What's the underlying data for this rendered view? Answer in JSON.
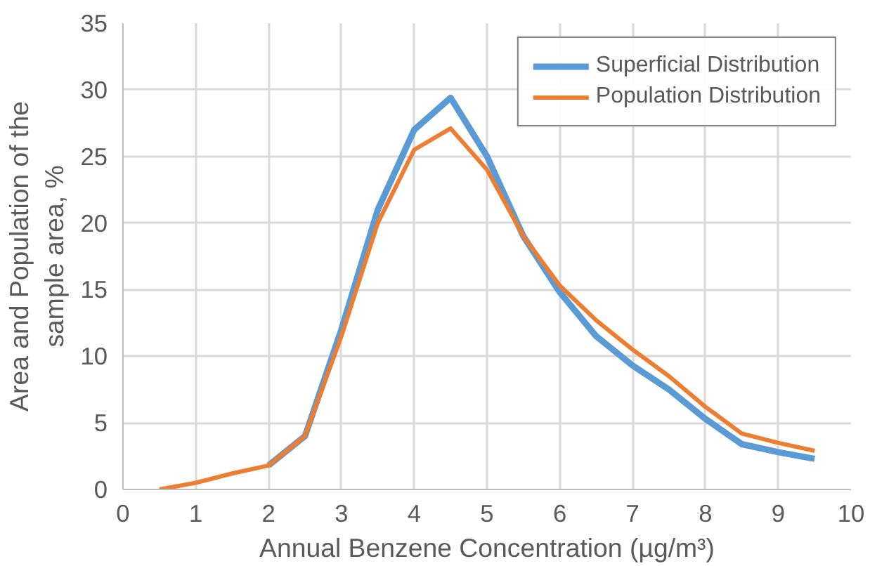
{
  "chart_data": {
    "type": "line",
    "xlabel": "Annual Benzene Concentration (µg/m³)",
    "ylabel": "Area and Population of the\nsample area, %",
    "x": [
      0.5,
      1,
      1.5,
      2,
      2.5,
      3,
      3.5,
      4,
      4.5,
      5,
      5.5,
      6,
      6.5,
      7,
      7.5,
      8,
      8.5,
      9,
      9.5
    ],
    "series": [
      {
        "name": "Superficial Distribution",
        "color": "#5b9bd5",
        "values": [
          null,
          null,
          null,
          1.8,
          4,
          12,
          21,
          27,
          29.4,
          25,
          19,
          14.8,
          11.5,
          9.3,
          7.5,
          5.3,
          3.4,
          2.8,
          2.3
        ]
      },
      {
        "name": "Population Distribution",
        "color": "#ed7d31",
        "values": [
          0,
          0.5,
          1.2,
          1.8,
          4,
          11.5,
          20,
          25.5,
          27.1,
          24,
          19,
          15.3,
          12.7,
          10.5,
          8.5,
          6.2,
          4.2,
          3.5,
          2.9
        ]
      }
    ],
    "xlim": [
      0,
      10
    ],
    "xticks": [
      0,
      1,
      2,
      3,
      4,
      5,
      6,
      7,
      8,
      9,
      10
    ],
    "ylim": [
      0,
      35
    ],
    "yticks": [
      0,
      5,
      10,
      15,
      20,
      25,
      30,
      35
    ],
    "grid": true,
    "legend": "top right",
    "marker": "none",
    "line_style": "solid"
  }
}
